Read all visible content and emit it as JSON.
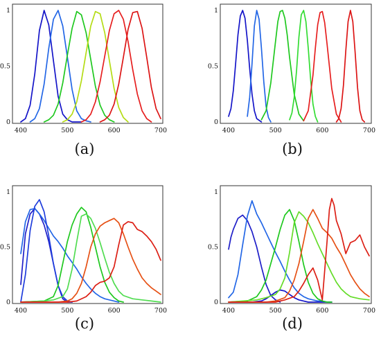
{
  "chart_data": [
    {
      "type": "line",
      "caption": "(a)",
      "xlim": [
        400,
        700
      ],
      "ylim": [
        0,
        1
      ],
      "xticks": [
        "400",
        "500",
        "600",
        "700"
      ],
      "yticks": [
        "0",
        "0.5",
        "1"
      ],
      "series": [
        {
          "color": "#1414c8",
          "x": [
            400,
            410,
            420,
            430,
            440,
            450,
            460,
            470,
            480,
            490,
            500,
            510,
            520,
            530
          ],
          "y": [
            0.0,
            0.03,
            0.15,
            0.43,
            0.82,
            1.0,
            0.87,
            0.55,
            0.23,
            0.07,
            0.02,
            0.0,
            0.0,
            0.0
          ]
        },
        {
          "color": "#2266e6",
          "x": [
            420,
            430,
            440,
            450,
            460,
            470,
            480,
            490,
            500,
            510,
            520,
            530,
            540,
            550
          ],
          "y": [
            0.0,
            0.03,
            0.12,
            0.34,
            0.66,
            0.92,
            1.0,
            0.86,
            0.58,
            0.29,
            0.1,
            0.03,
            0.01,
            0.0
          ]
        },
        {
          "color": "#1ec81e",
          "x": [
            450,
            460,
            470,
            480,
            490,
            500,
            510,
            520,
            530,
            540,
            550,
            560,
            570,
            580,
            590,
            600
          ],
          "y": [
            0.0,
            0.02,
            0.06,
            0.16,
            0.35,
            0.6,
            0.84,
            0.99,
            0.96,
            0.8,
            0.56,
            0.32,
            0.15,
            0.06,
            0.02,
            0.0
          ]
        },
        {
          "color": "#b4dc14",
          "x": [
            490,
            500,
            510,
            520,
            530,
            540,
            550,
            560,
            570,
            580,
            590,
            600,
            610,
            620,
            630
          ],
          "y": [
            0.0,
            0.02,
            0.07,
            0.18,
            0.37,
            0.62,
            0.86,
            0.99,
            0.97,
            0.8,
            0.55,
            0.3,
            0.13,
            0.04,
            0.0
          ]
        },
        {
          "color": "#e61e1e",
          "x": [
            530,
            540,
            550,
            560,
            570,
            580,
            590,
            600,
            610,
            620,
            630,
            640,
            650,
            660,
            670,
            680
          ],
          "y": [
            0.0,
            0.02,
            0.07,
            0.18,
            0.36,
            0.59,
            0.82,
            0.97,
            1.0,
            0.92,
            0.72,
            0.47,
            0.25,
            0.1,
            0.03,
            0.0
          ]
        },
        {
          "color": "#dc1414",
          "x": [
            570,
            580,
            590,
            600,
            610,
            620,
            630,
            640,
            650,
            660,
            670,
            680,
            690,
            700
          ],
          "y": [
            0.0,
            0.02,
            0.06,
            0.16,
            0.34,
            0.58,
            0.83,
            0.98,
            0.99,
            0.84,
            0.58,
            0.31,
            0.12,
            0.03
          ]
        }
      ]
    },
    {
      "type": "line",
      "caption": "(b)",
      "xlim": [
        400,
        700
      ],
      "ylim": [
        0,
        1
      ],
      "xticks": [
        "400",
        "500",
        "600",
        "700"
      ],
      "yticks": [
        "0",
        "0.5",
        "1"
      ],
      "series": [
        {
          "color": "#1414c8",
          "x": [
            400,
            405,
            410,
            415,
            420,
            425,
            430,
            435,
            440,
            445,
            450,
            455,
            460,
            470
          ],
          "y": [
            0.05,
            0.12,
            0.28,
            0.52,
            0.78,
            0.95,
            1.0,
            0.93,
            0.73,
            0.48,
            0.25,
            0.1,
            0.03,
            0.0
          ]
        },
        {
          "color": "#2266e6",
          "x": [
            440,
            445,
            450,
            455,
            460,
            465,
            470,
            475,
            480,
            485,
            490
          ],
          "y": [
            0.05,
            0.22,
            0.52,
            0.86,
            1.0,
            0.92,
            0.66,
            0.36,
            0.14,
            0.04,
            0.0
          ]
        },
        {
          "color": "#1ec81e",
          "x": [
            470,
            480,
            490,
            500,
            505,
            510,
            515,
            520,
            525,
            530,
            540,
            550,
            560
          ],
          "y": [
            0.02,
            0.1,
            0.35,
            0.72,
            0.9,
            0.99,
            1.0,
            0.93,
            0.78,
            0.58,
            0.25,
            0.07,
            0.01
          ]
        },
        {
          "color": "#32dc32",
          "x": [
            530,
            535,
            540,
            545,
            550,
            555,
            560,
            565,
            570,
            575,
            580,
            585,
            590
          ],
          "y": [
            0.02,
            0.08,
            0.22,
            0.46,
            0.76,
            0.96,
            1.0,
            0.9,
            0.66,
            0.38,
            0.16,
            0.05,
            0.0
          ]
        },
        {
          "color": "#e61e1e",
          "x": [
            560,
            570,
            580,
            585,
            590,
            595,
            600,
            605,
            610,
            620,
            630,
            640
          ],
          "y": [
            0.01,
            0.1,
            0.42,
            0.66,
            0.87,
            0.98,
            0.99,
            0.89,
            0.7,
            0.3,
            0.07,
            0.0
          ]
        },
        {
          "color": "#dc1414",
          "x": [
            630,
            635,
            640,
            645,
            650,
            655,
            660,
            665,
            670,
            675,
            680,
            685,
            690
          ],
          "y": [
            0.0,
            0.03,
            0.12,
            0.33,
            0.64,
            0.9,
            1.0,
            0.9,
            0.62,
            0.31,
            0.1,
            0.02,
            0.0
          ]
        }
      ]
    },
    {
      "type": "line",
      "caption": "(c)",
      "xlim": [
        400,
        700
      ],
      "ylim": [
        0,
        1
      ],
      "xticks": [
        "400",
        "500",
        "600",
        "700"
      ],
      "yticks": [
        "0",
        "0.5",
        "1"
      ],
      "series": [
        {
          "color": "#1e1ec8",
          "x": [
            400,
            405,
            410,
            420,
            430,
            440,
            450,
            460,
            470,
            480,
            490,
            500,
            510
          ],
          "y": [
            0.16,
            0.4,
            0.62,
            0.8,
            0.85,
            0.8,
            0.7,
            0.55,
            0.35,
            0.15,
            0.03,
            0.0,
            0.0
          ]
        },
        {
          "color": "#2266e6",
          "x": [
            400,
            410,
            420,
            430,
            440,
            450,
            460,
            470,
            480,
            490,
            500,
            510,
            520,
            530,
            540,
            550,
            560,
            570,
            580,
            590,
            600,
            610
          ],
          "y": [
            0.44,
            0.73,
            0.84,
            0.85,
            0.8,
            0.74,
            0.67,
            0.6,
            0.55,
            0.49,
            0.42,
            0.36,
            0.3,
            0.23,
            0.17,
            0.12,
            0.08,
            0.05,
            0.03,
            0.02,
            0.01,
            0.0
          ]
        },
        {
          "color": "#1e3cdc",
          "x": [
            400,
            410,
            420,
            430,
            440,
            450,
            460,
            470,
            480,
            490,
            500,
            510
          ],
          "y": [
            0.0,
            0.25,
            0.65,
            0.87,
            0.93,
            0.82,
            0.6,
            0.35,
            0.15,
            0.05,
            0.01,
            0.0
          ]
        },
        {
          "color": "#1ec81e",
          "x": [
            400,
            450,
            470,
            480,
            490,
            500,
            510,
            520,
            530,
            540,
            550,
            560,
            570,
            580,
            590,
            600,
            610,
            620
          ],
          "y": [
            0.0,
            0.01,
            0.05,
            0.15,
            0.35,
            0.55,
            0.7,
            0.8,
            0.86,
            0.82,
            0.68,
            0.5,
            0.32,
            0.18,
            0.09,
            0.04,
            0.01,
            0.0
          ]
        },
        {
          "color": "#50dc50",
          "x": [
            400,
            450,
            470,
            490,
            500,
            510,
            520,
            530,
            540,
            550,
            560,
            570,
            580,
            590,
            600,
            610,
            620,
            640,
            660,
            680,
            700
          ],
          "y": [
            0.0,
            0.01,
            0.02,
            0.05,
            0.12,
            0.3,
            0.55,
            0.78,
            0.8,
            0.76,
            0.67,
            0.54,
            0.4,
            0.27,
            0.17,
            0.1,
            0.06,
            0.03,
            0.02,
            0.01,
            0.0
          ]
        },
        {
          "color": "#e65014",
          "x": [
            400,
            480,
            500,
            510,
            520,
            530,
            540,
            550,
            560,
            570,
            580,
            590,
            600,
            610,
            620,
            630,
            640,
            650,
            660,
            670,
            680,
            690,
            700
          ],
          "y": [
            0.0,
            0.0,
            0.01,
            0.03,
            0.08,
            0.17,
            0.32,
            0.5,
            0.62,
            0.69,
            0.72,
            0.74,
            0.76,
            0.72,
            0.62,
            0.5,
            0.39,
            0.3,
            0.22,
            0.17,
            0.13,
            0.1,
            0.07
          ]
        },
        {
          "color": "#dc1e14",
          "x": [
            400,
            500,
            520,
            540,
            550,
            560,
            570,
            580,
            590,
            600,
            610,
            620,
            630,
            640,
            650,
            660,
            670,
            680,
            690,
            700
          ],
          "y": [
            0.0,
            0.0,
            0.01,
            0.05,
            0.09,
            0.15,
            0.18,
            0.19,
            0.22,
            0.32,
            0.52,
            0.7,
            0.73,
            0.72,
            0.66,
            0.64,
            0.6,
            0.55,
            0.48,
            0.38
          ]
        }
      ]
    },
    {
      "type": "line",
      "caption": "(d)",
      "xlim": [
        400,
        700
      ],
      "ylim": [
        0,
        1
      ],
      "xticks": [
        "400",
        "500",
        "600",
        "700"
      ],
      "yticks": [
        "0",
        "0.5",
        "1"
      ],
      "series": [
        {
          "color": "#1e1ec8",
          "x": [
            400,
            405,
            410,
            420,
            430,
            440,
            450,
            460,
            470,
            480,
            490,
            500,
            510
          ],
          "y": [
            0.48,
            0.59,
            0.66,
            0.76,
            0.79,
            0.74,
            0.64,
            0.5,
            0.32,
            0.16,
            0.06,
            0.02,
            0.0
          ]
        },
        {
          "color": "#2266e6",
          "x": [
            400,
            410,
            420,
            430,
            440,
            450,
            460,
            470,
            480,
            490,
            500,
            510,
            520,
            530,
            540,
            550,
            560,
            570,
            580,
            590,
            600,
            610,
            620
          ],
          "y": [
            0.04,
            0.09,
            0.25,
            0.52,
            0.78,
            0.92,
            0.8,
            0.72,
            0.63,
            0.54,
            0.45,
            0.37,
            0.28,
            0.2,
            0.13,
            0.08,
            0.05,
            0.03,
            0.02,
            0.01,
            0.01,
            0.0,
            0.0
          ]
        },
        {
          "color": "#1414c8",
          "x": [
            400,
            450,
            470,
            480,
            490,
            500,
            510,
            520,
            530,
            540,
            550,
            560,
            570,
            580,
            590,
            600,
            620
          ],
          "y": [
            0.0,
            0.0,
            0.01,
            0.03,
            0.06,
            0.09,
            0.11,
            0.1,
            0.07,
            0.04,
            0.02,
            0.01,
            0.0,
            0.0,
            0.0,
            0.0,
            0.0
          ]
        },
        {
          "color": "#1ec81e",
          "x": [
            400,
            440,
            460,
            470,
            480,
            490,
            500,
            510,
            520,
            530,
            540,
            550,
            560,
            570,
            580,
            590,
            600,
            610,
            620
          ],
          "y": [
            0.0,
            0.01,
            0.05,
            0.11,
            0.2,
            0.35,
            0.5,
            0.66,
            0.79,
            0.84,
            0.74,
            0.55,
            0.34,
            0.18,
            0.08,
            0.03,
            0.01,
            0.0,
            0.0
          ]
        },
        {
          "color": "#64dc28",
          "x": [
            400,
            460,
            480,
            500,
            510,
            520,
            530,
            540,
            550,
            560,
            570,
            580,
            590,
            600,
            610,
            620,
            630,
            640,
            650,
            660,
            680,
            700
          ],
          "y": [
            0.0,
            0.02,
            0.04,
            0.07,
            0.12,
            0.22,
            0.45,
            0.72,
            0.82,
            0.78,
            0.72,
            0.63,
            0.53,
            0.44,
            0.35,
            0.26,
            0.18,
            0.12,
            0.08,
            0.05,
            0.03,
            0.02
          ]
        },
        {
          "color": "#e65014",
          "x": [
            400,
            480,
            500,
            520,
            530,
            540,
            550,
            560,
            570,
            580,
            590,
            600,
            610,
            620,
            630,
            640,
            650,
            660,
            670,
            680,
            690,
            700
          ],
          "y": [
            0.0,
            0.0,
            0.01,
            0.04,
            0.1,
            0.2,
            0.35,
            0.55,
            0.76,
            0.84,
            0.76,
            0.67,
            0.63,
            0.58,
            0.5,
            0.43,
            0.34,
            0.25,
            0.18,
            0.12,
            0.08,
            0.05
          ]
        },
        {
          "color": "#dc1e14",
          "x": [
            400,
            500,
            520,
            540,
            550,
            560,
            570,
            580,
            590,
            600,
            610,
            615,
            620,
            625,
            630,
            640,
            650,
            660,
            670,
            680,
            690,
            700
          ],
          "y": [
            0.0,
            0.0,
            0.02,
            0.05,
            0.1,
            0.17,
            0.25,
            0.31,
            0.2,
            0.02,
            0.55,
            0.84,
            0.94,
            0.88,
            0.74,
            0.62,
            0.44,
            0.54,
            0.56,
            0.61,
            0.5,
            0.42
          ]
        }
      ]
    }
  ]
}
